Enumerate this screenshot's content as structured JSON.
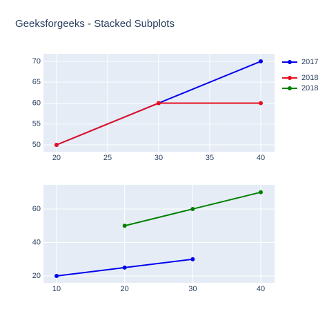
{
  "title": "Geeksforgeeks - Stacked Subplots",
  "chart_data": [
    {
      "type": "line",
      "series": [
        {
          "name": "2017",
          "color": "#0000ee",
          "x": [
            20,
            30,
            40
          ],
          "values": [
            50,
            60,
            70
          ]
        },
        {
          "name": "2018",
          "color": "#e8101e",
          "x": [
            20,
            30,
            40
          ],
          "values": [
            50,
            60,
            60
          ]
        }
      ],
      "xlim": [
        18.72,
        41.35
      ],
      "ylim": [
        48.35,
        71.8
      ],
      "xticks": [
        20,
        25,
        30,
        35,
        40
      ],
      "yticks": [
        50,
        55,
        60,
        65,
        70
      ],
      "grid": true,
      "legend": "right"
    },
    {
      "type": "line",
      "series": [
        {
          "name": "2018",
          "color": "#008000",
          "x": [
            20,
            30,
            40
          ],
          "values": [
            50,
            60,
            70
          ]
        },
        {
          "color": "#0000ee",
          "x": [
            10,
            20,
            30
          ],
          "values": [
            20,
            25,
            30
          ]
        }
      ],
      "xlim": [
        8.07,
        42.03
      ],
      "ylim": [
        15.9,
        74.4
      ],
      "xticks": [
        10,
        20,
        30,
        40
      ],
      "yticks": [
        20,
        40,
        60
      ],
      "grid": true
    }
  ]
}
